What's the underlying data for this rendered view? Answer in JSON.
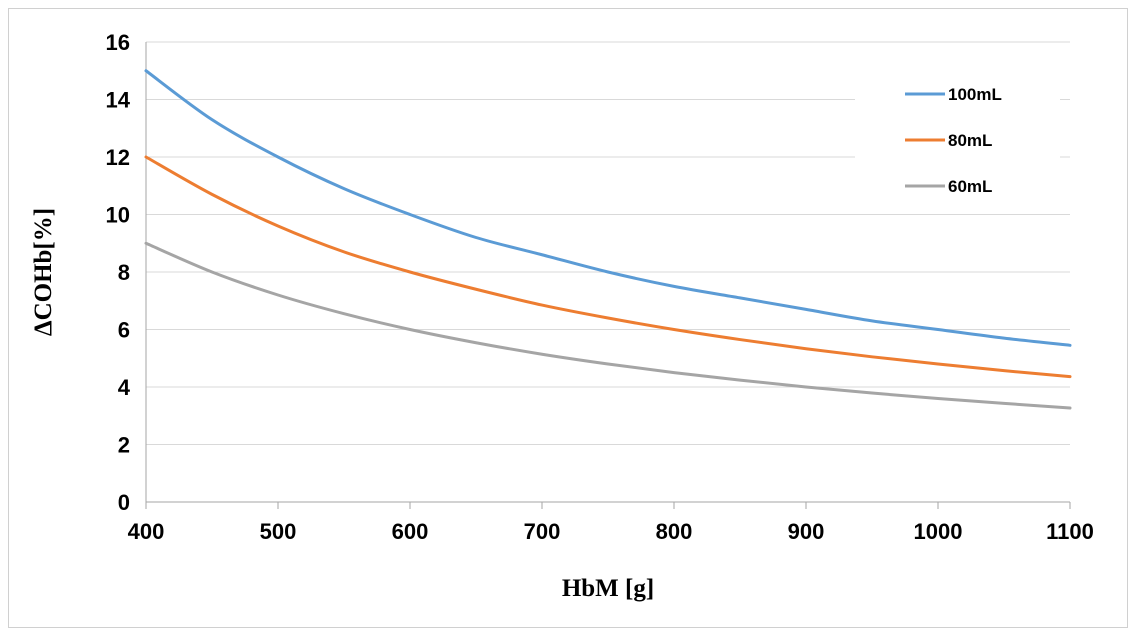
{
  "chart_data": {
    "type": "line",
    "title": "",
    "xlabel": "HbM [g]",
    "ylabel": "ΔCOHb[%]",
    "xlim": [
      400,
      1100
    ],
    "ylim": [
      0,
      16
    ],
    "x_ticks": [
      400,
      500,
      600,
      700,
      800,
      900,
      1000,
      1100
    ],
    "y_ticks": [
      0,
      2,
      4,
      6,
      8,
      10,
      12,
      14,
      16
    ],
    "grid": "horizontal",
    "legend_position": "top-right",
    "x": [
      400,
      450,
      500,
      550,
      600,
      650,
      700,
      750,
      800,
      850,
      900,
      950,
      1000,
      1050,
      1100
    ],
    "series": [
      {
        "name": "100mL",
        "color": "#5b9bd5",
        "values": [
          15.0,
          13.3,
          12.0,
          10.9,
          10.0,
          9.2,
          8.6,
          8.0,
          7.5,
          7.1,
          6.7,
          6.3,
          6.0,
          5.7,
          5.45
        ]
      },
      {
        "name": "80mL",
        "color": "#ed7d31",
        "values": [
          12.0,
          10.7,
          9.6,
          8.7,
          8.0,
          7.4,
          6.85,
          6.4,
          6.0,
          5.65,
          5.33,
          5.05,
          4.8,
          4.57,
          4.36
        ]
      },
      {
        "name": "60mL",
        "color": "#a5a5a5",
        "values": [
          9.0,
          8.0,
          7.2,
          6.55,
          6.0,
          5.54,
          5.14,
          4.8,
          4.5,
          4.24,
          4.0,
          3.79,
          3.6,
          3.43,
          3.27
        ]
      }
    ]
  }
}
